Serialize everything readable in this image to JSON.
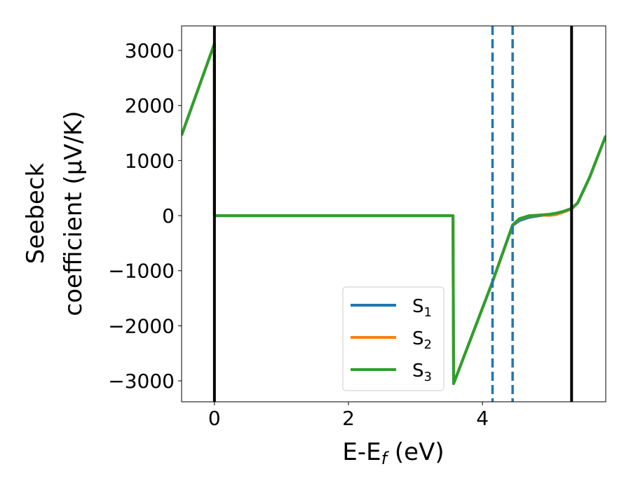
{
  "chart_data": {
    "type": "line",
    "title": "",
    "xlabel": "E-E",
    "xlabel_sub": "f",
    "xlabel_unit": " (eV)",
    "ylabel_line1": "Seebeck",
    "ylabel_line2": "coefficient  (μV/K)",
    "xlim": [
      -0.49,
      5.84
    ],
    "ylim": [
      -3380,
      3445
    ],
    "xticks": [
      0,
      2,
      4
    ],
    "xtick_labels": [
      "0",
      "2",
      "4"
    ],
    "yticks": [
      3000,
      2000,
      1000,
      0,
      -1000,
      -2000,
      -3000
    ],
    "ytick_labels": [
      "3000",
      "2000",
      "1000",
      "0",
      "−1000",
      "−2000",
      "−3000"
    ],
    "grid": false,
    "legend_position": "lower-right",
    "vertical_lines": [
      {
        "x": 0,
        "style": "solid",
        "color": "#000000"
      },
      {
        "x": 5.33,
        "style": "solid",
        "color": "#000000"
      },
      {
        "x": 4.15,
        "style": "dashed",
        "color": "#1f77b4"
      },
      {
        "x": 4.45,
        "style": "dashed",
        "color": "#1f77b4"
      }
    ],
    "x": [
      -0.49,
      0.0,
      0.001,
      3.56,
      3.57,
      4.15,
      4.45,
      4.55,
      4.7,
      4.85,
      5.0,
      5.1,
      5.2,
      5.33,
      5.42,
      5.6,
      5.84
    ],
    "series": [
      {
        "name": "S",
        "sub": "1",
        "color": "#1f77b4",
        "values": [
          1460,
          3120,
          0,
          0,
          -3050,
          -1200,
          -180,
          -90,
          -30,
          0,
          20,
          40,
          75,
          130,
          230,
          700,
          1450
        ]
      },
      {
        "name": "S",
        "sub": "2",
        "color": "#ff7f0e",
        "values": [
          1460,
          3120,
          0,
          0,
          -3050,
          -1200,
          -170,
          -60,
          -5,
          10,
          5,
          20,
          60,
          120,
          230,
          700,
          1450
        ]
      },
      {
        "name": "S",
        "sub": "3",
        "color": "#2ca02c",
        "values": [
          1460,
          3120,
          0,
          0,
          -3050,
          -1200,
          -170,
          -55,
          0,
          10,
          25,
          45,
          75,
          130,
          230,
          700,
          1450
        ]
      }
    ]
  }
}
